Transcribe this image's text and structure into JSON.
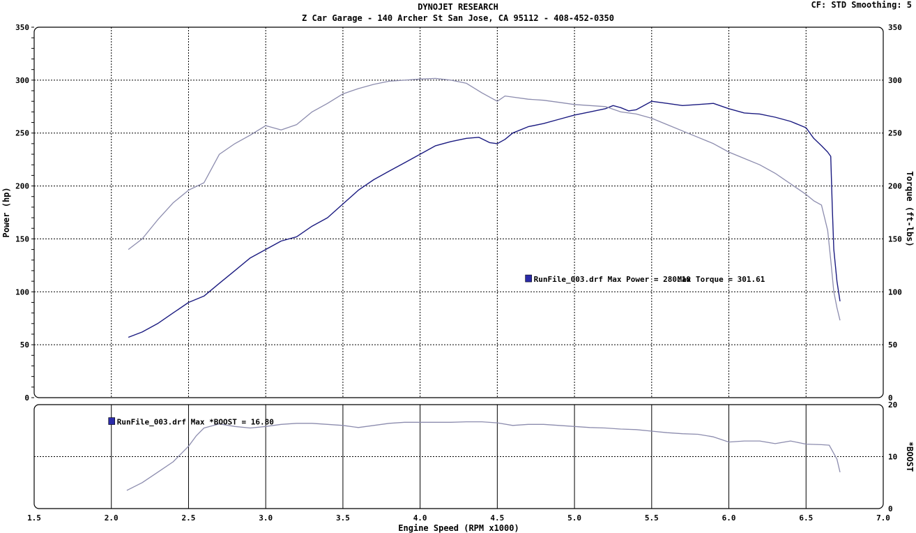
{
  "header": {
    "title": "DYNOJET RESEARCH",
    "subtitle": "Z Car Garage - 140 Archer St San Jose, CA 95112 - 408-452-0350",
    "cf_label": "CF: STD  Smoothing: 5"
  },
  "colors": {
    "power": "#1a1a80",
    "torque": "#8c8cae",
    "boost": "#8c8cae",
    "grid": "#000000",
    "legend_marker": "#2a2aa8"
  },
  "chart_data": [
    {
      "type": "line",
      "ylabel_left": "Power (hp)",
      "ylabel_right": "Torque (ft-lbs)",
      "xlim": [
        1.5,
        7.0
      ],
      "ylim": [
        0,
        350
      ],
      "xticks": [
        1.5,
        2.0,
        2.5,
        3.0,
        3.5,
        4.0,
        4.5,
        5.0,
        5.5,
        6.0,
        6.5,
        7.0
      ],
      "yticks": [
        0,
        50,
        100,
        150,
        200,
        250,
        300,
        350
      ],
      "grid": true,
      "legend": {
        "file": "RunFile_003.drf",
        "power_text": "Max Power = 280.10",
        "torque_text": "Max Torque = 301.61"
      },
      "series": [
        {
          "key": "power",
          "x": [
            2.11,
            2.2,
            2.3,
            2.4,
            2.5,
            2.6,
            2.7,
            2.8,
            2.9,
            3.0,
            3.1,
            3.2,
            3.3,
            3.4,
            3.5,
            3.6,
            3.7,
            3.8,
            3.9,
            4.0,
            4.1,
            4.2,
            4.3,
            4.38,
            4.45,
            4.5,
            4.55,
            4.6,
            4.7,
            4.8,
            4.9,
            5.0,
            5.1,
            5.2,
            5.25,
            5.3,
            5.35,
            5.4,
            5.5,
            5.6,
            5.7,
            5.8,
            5.9,
            6.0,
            6.1,
            6.2,
            6.3,
            6.4,
            6.5,
            6.55,
            6.6,
            6.64,
            6.66,
            6.67,
            6.68,
            6.7,
            6.72
          ],
          "y": [
            57,
            62,
            70,
            80,
            90,
            96,
            108,
            120,
            132,
            140,
            148,
            152,
            162,
            170,
            183,
            196,
            206,
            214,
            222,
            230,
            238,
            242,
            245,
            246,
            241,
            240,
            244,
            250,
            256,
            259,
            263,
            267,
            270,
            273,
            276,
            274,
            271,
            272,
            280,
            278,
            276,
            277,
            278,
            273,
            269,
            268,
            265,
            261,
            255,
            245,
            238,
            232,
            228,
            180,
            140,
            110,
            91
          ]
        },
        {
          "key": "torque",
          "x": [
            2.11,
            2.2,
            2.3,
            2.4,
            2.5,
            2.6,
            2.7,
            2.8,
            2.9,
            3.0,
            3.1,
            3.2,
            3.3,
            3.4,
            3.5,
            3.6,
            3.7,
            3.8,
            3.9,
            4.0,
            4.1,
            4.2,
            4.3,
            4.4,
            4.5,
            4.55,
            4.6,
            4.7,
            4.8,
            4.9,
            5.0,
            5.1,
            5.2,
            5.3,
            5.4,
            5.5,
            5.6,
            5.7,
            5.8,
            5.9,
            6.0,
            6.1,
            6.2,
            6.3,
            6.4,
            6.5,
            6.55,
            6.6,
            6.64,
            6.66,
            6.68,
            6.7,
            6.72
          ],
          "y": [
            140,
            150,
            168,
            184,
            196,
            203,
            230,
            240,
            248,
            257,
            253,
            258,
            270,
            278,
            287,
            292,
            296,
            299,
            300,
            301,
            301.61,
            300,
            297,
            288,
            280,
            285,
            284,
            282,
            281,
            279,
            277,
            276,
            275,
            270,
            268,
            264,
            258,
            252,
            246,
            240,
            232,
            226,
            220,
            212,
            202,
            192,
            186,
            182,
            158,
            130,
            100,
            85,
            73
          ]
        }
      ]
    },
    {
      "type": "line",
      "ylabel_right": "*BOOST",
      "xlabel": "Engine Speed (RPM x1000)",
      "xlim": [
        1.5,
        7.0
      ],
      "ylim": [
        0,
        20
      ],
      "yticks": [
        0,
        10,
        20
      ],
      "grid": true,
      "legend": {
        "file": "RunFile_003.drf",
        "boost_text": "Max *BOOST = 16.80"
      },
      "series": [
        {
          "key": "boost",
          "x": [
            2.1,
            2.2,
            2.3,
            2.4,
            2.5,
            2.55,
            2.6,
            2.7,
            2.8,
            2.9,
            3.0,
            3.1,
            3.2,
            3.3,
            3.4,
            3.5,
            3.6,
            3.7,
            3.8,
            3.9,
            4.0,
            4.1,
            4.2,
            4.3,
            4.4,
            4.5,
            4.6,
            4.7,
            4.8,
            4.9,
            5.0,
            5.1,
            5.2,
            5.3,
            5.4,
            5.5,
            5.6,
            5.7,
            5.8,
            5.9,
            6.0,
            6.1,
            6.2,
            6.3,
            6.4,
            6.5,
            6.6,
            6.65,
            6.7,
            6.72
          ],
          "y": [
            3.5,
            5,
            7,
            9,
            12,
            14,
            15.5,
            16.3,
            15.8,
            15.5,
            15.8,
            16.2,
            16.4,
            16.4,
            16.2,
            16,
            15.6,
            16,
            16.4,
            16.6,
            16.6,
            16.6,
            16.6,
            16.7,
            16.7,
            16.5,
            16,
            16.2,
            16.2,
            16,
            15.8,
            15.6,
            15.5,
            15.3,
            15.2,
            14.9,
            14.6,
            14.4,
            14.3,
            13.8,
            12.8,
            13.0,
            13.0,
            12.5,
            13.0,
            12.4,
            12.3,
            12.2,
            9.5,
            7.0
          ]
        }
      ]
    }
  ]
}
